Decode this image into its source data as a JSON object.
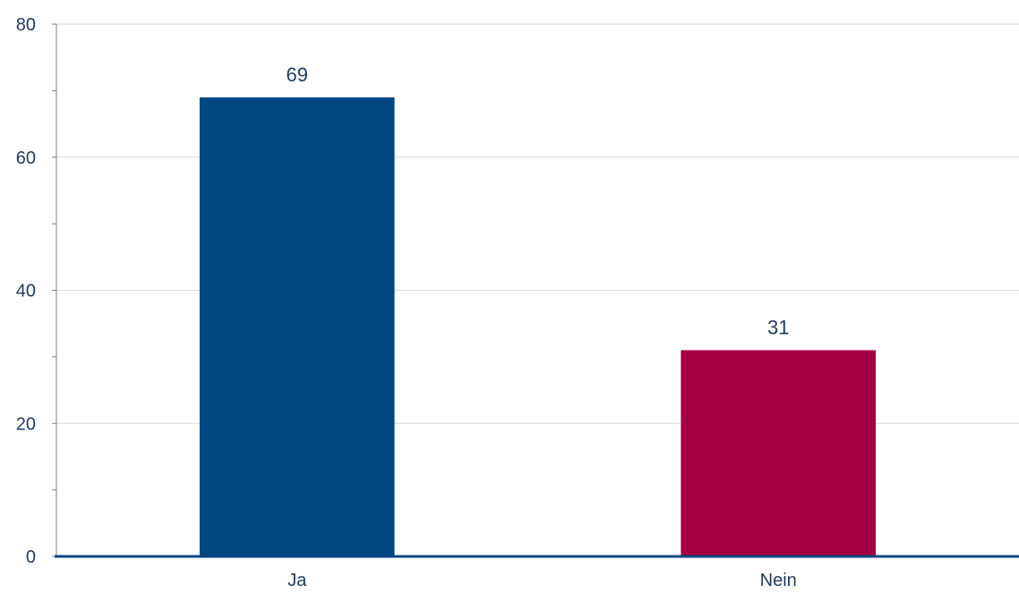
{
  "chart_data": {
    "type": "bar",
    "title": "",
    "xlabel": "",
    "ylabel": "",
    "categories": [
      "Ja",
      "Nein"
    ],
    "values": [
      69,
      31
    ],
    "data_labels": [
      "69",
      "31"
    ],
    "bar_colors": [
      "#004680",
      "#a50044"
    ],
    "ylim": [
      0,
      80
    ],
    "yticks": [
      0,
      20,
      40,
      60,
      80
    ],
    "ytick_labels": [
      "0",
      "20",
      "40",
      "60",
      "80"
    ],
    "minor_ytick_step": 10,
    "grid": true,
    "grid_color": "#d9d9d9",
    "axis_color": "#004680",
    "text_color": "#1f3a5f",
    "legend": "none"
  }
}
